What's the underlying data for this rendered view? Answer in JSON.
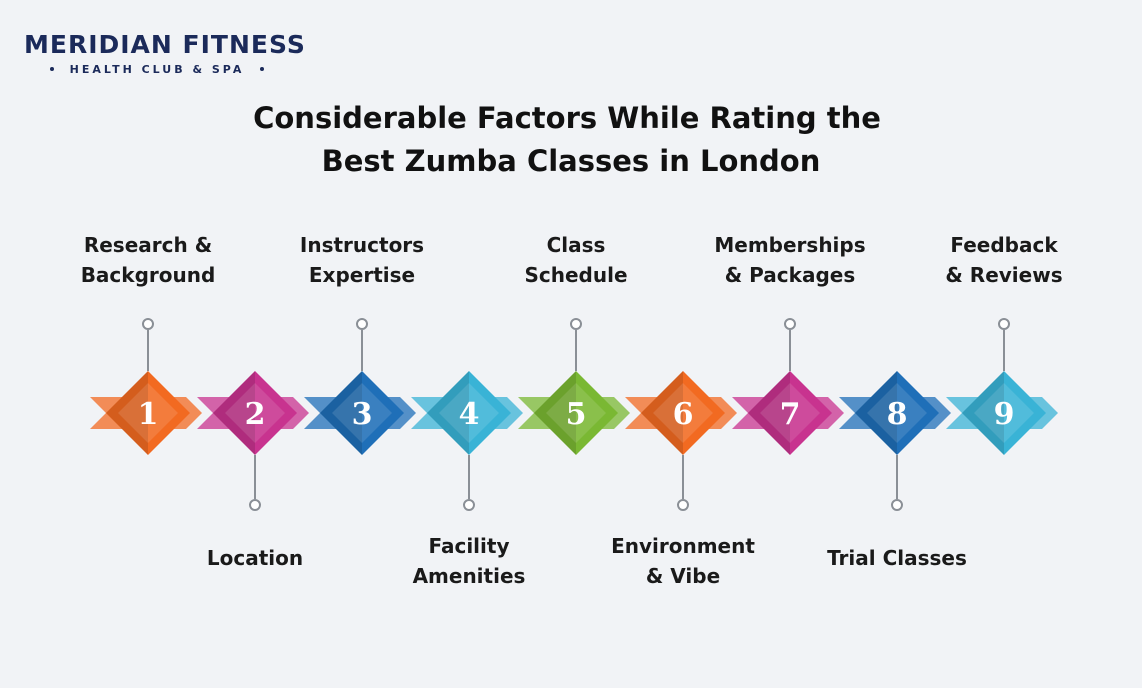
{
  "brand": {
    "name": "MERIDIAN FITNESS",
    "tagline": "HEALTH CLUB & SPA"
  },
  "title": [
    "Considerable Factors While Rating the",
    "Best Zumba Classes in London"
  ],
  "steps": [
    {
      "number": "1",
      "label": [
        "Research &",
        "Background"
      ],
      "color": "#f26a21"
    },
    {
      "number": "2",
      "label": [
        "Location"
      ],
      "color": "#c8338f"
    },
    {
      "number": "3",
      "label": [
        "Instructors",
        "Expertise"
      ],
      "color": "#1f6fb8"
    },
    {
      "number": "4",
      "label": [
        "Facility",
        "Amenities"
      ],
      "color": "#39b3d6"
    },
    {
      "number": "5",
      "label": [
        "Class",
        "Schedule"
      ],
      "color": "#7ab833"
    },
    {
      "number": "6",
      "label": [
        "Environment",
        "& Vibe"
      ],
      "color": "#f26a21"
    },
    {
      "number": "7",
      "label": [
        "Memberships",
        "& Packages"
      ],
      "color": "#c8338f"
    },
    {
      "number": "8",
      "label": [
        "Trial Classes"
      ],
      "color": "#1f6fb8"
    },
    {
      "number": "9",
      "label": [
        "Feedback",
        "& Reviews"
      ],
      "color": "#39b3d6"
    }
  ]
}
